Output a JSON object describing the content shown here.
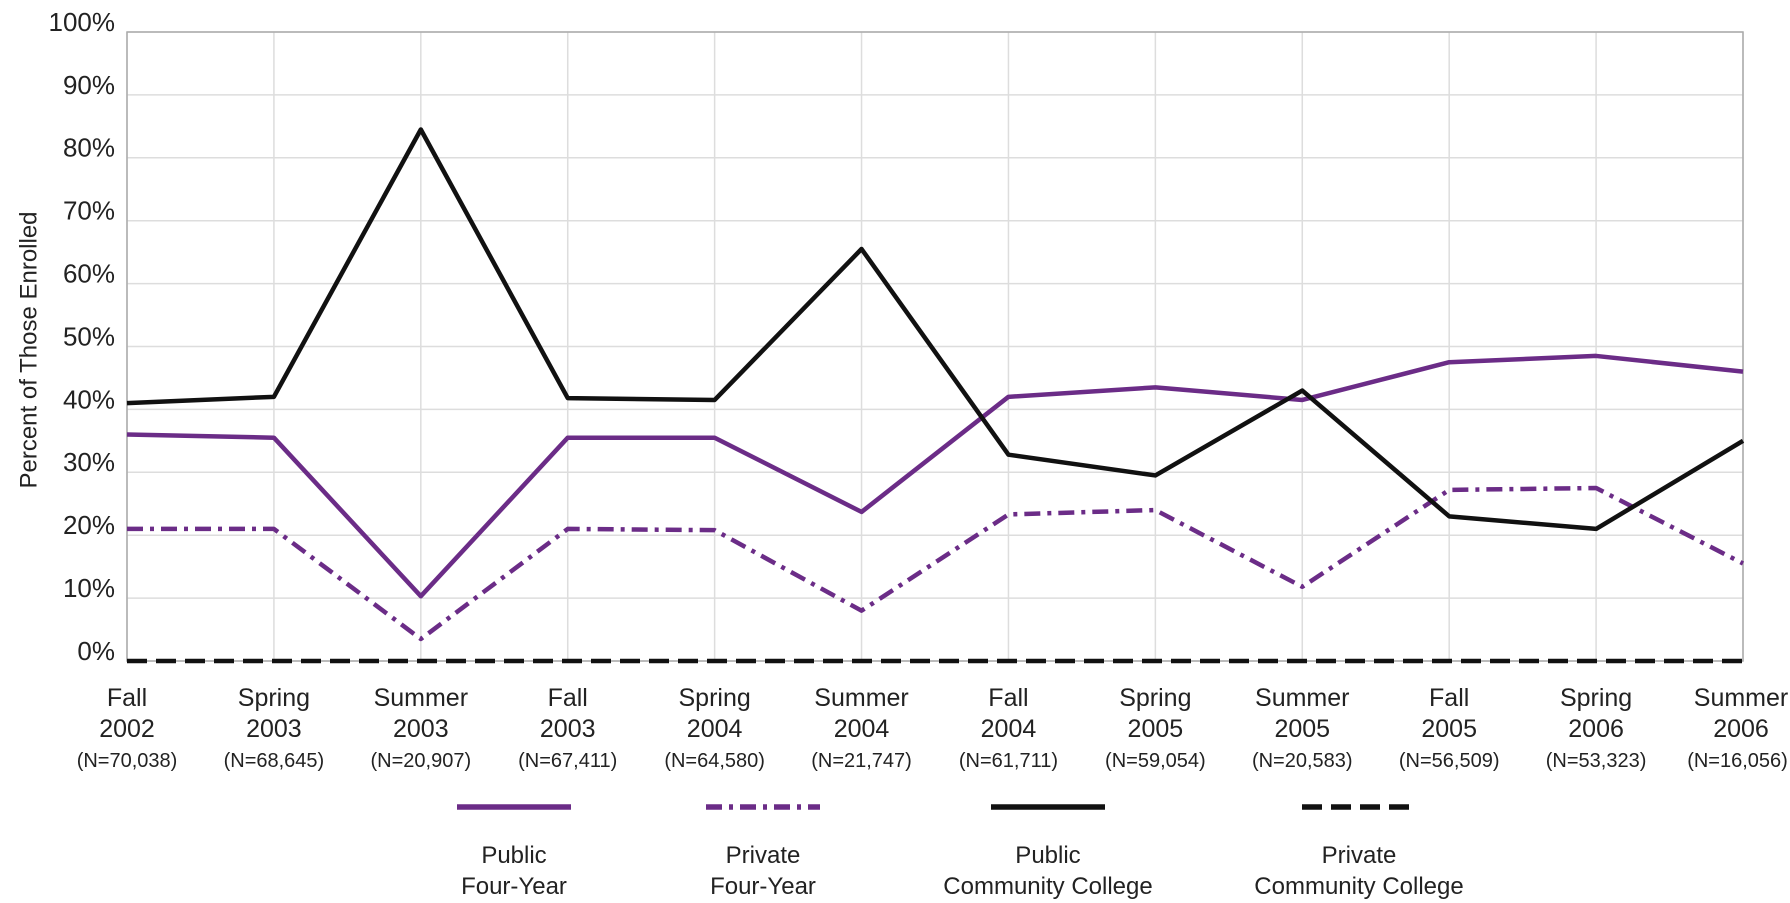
{
  "chart_data": {
    "type": "line",
    "y_label": "Percent of Those Enrolled",
    "categories": [
      "Fall\n2002",
      "Spring\n2003",
      "Summer\n2003",
      "Fall\n2003",
      "Spring\n2004",
      "Summer\n2004",
      "Fall\n2004",
      "Spring\n2005",
      "Summer\n2005",
      "Fall\n2005",
      "Spring\n2006",
      "Summer\n2006"
    ],
    "category_counts": [
      "(N=70,038)",
      "(N=68,645)",
      "(N=20,907)",
      "(N=67,411)",
      "(N=64,580)",
      "(N=21,747)",
      "(N=61,711)",
      "(N=59,054)",
      "(N=20,583)",
      "(N=56,509)",
      "(N=53,323)",
      "(N=16,056)"
    ],
    "series": [
      {
        "name": "Public\nFour-Year",
        "color": "#6b2c87",
        "dash": "solid",
        "values": [
          36,
          35.5,
          10.3,
          35.5,
          35.5,
          23.7,
          42,
          43.5,
          41.5,
          47.5,
          48.5,
          46
        ]
      },
      {
        "name": "Private\nFour-Year",
        "color": "#6b2c87",
        "dash": "dashdot",
        "values": [
          21,
          21,
          3.5,
          21,
          20.8,
          8,
          23.3,
          24,
          11.8,
          27.2,
          27.5,
          15.5
        ]
      },
      {
        "name": "Public\nCommunity College",
        "color": "#111111",
        "dash": "solid",
        "values": [
          41,
          42,
          84.5,
          41.8,
          41.5,
          65.5,
          32.8,
          29.5,
          43,
          23,
          21,
          35
        ]
      },
      {
        "name": "Private\nCommunity College",
        "color": "#111111",
        "dash": "dashed",
        "values": [
          0,
          0,
          0,
          0,
          0,
          0,
          0,
          0,
          0,
          0,
          0,
          0
        ]
      }
    ],
    "ylim": [
      0,
      100
    ],
    "yticks": [
      {
        "value": 0,
        "label": "0%"
      },
      {
        "value": 10,
        "label": "10%"
      },
      {
        "value": 20,
        "label": "20%"
      },
      {
        "value": 30,
        "label": "30%"
      },
      {
        "value": 40,
        "label": "40%"
      },
      {
        "value": 50,
        "label": "50%"
      },
      {
        "value": 60,
        "label": "60%"
      },
      {
        "value": 70,
        "label": "70%"
      },
      {
        "value": 80,
        "label": "80%"
      },
      {
        "value": 90,
        "label": "90%"
      },
      {
        "value": 100,
        "label": "100%"
      }
    ],
    "grid": true,
    "legend": "bottom"
  }
}
